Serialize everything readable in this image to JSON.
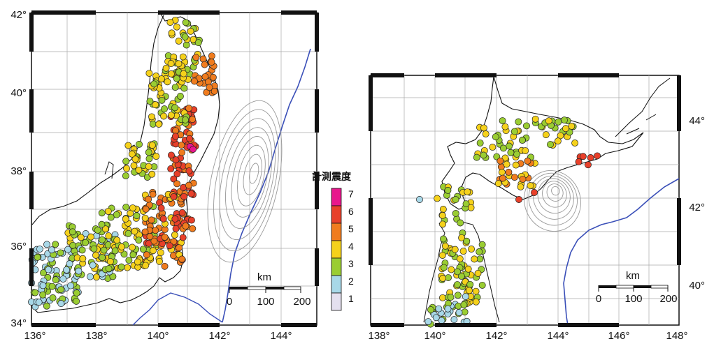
{
  "maps": [
    {
      "id": "honshu",
      "x_ticks": [
        "136°",
        "138°",
        "140°",
        "142°",
        "144°"
      ],
      "y_ticks": [
        "34°",
        "36°",
        "38°",
        "40°",
        "42°"
      ],
      "scale": {
        "unit": "km",
        "labels": [
          "0",
          "100",
          "200"
        ]
      }
    },
    {
      "id": "hokkaido",
      "x_ticks": [
        "138°",
        "140°",
        "142°",
        "144°",
        "146°",
        "148°"
      ],
      "y_ticks": [
        "40°",
        "42°",
        "44°"
      ],
      "scale": {
        "unit": "km",
        "labels": [
          "0",
          "100",
          "200"
        ]
      }
    }
  ],
  "legend": {
    "title": "計測震度",
    "levels": [
      {
        "label": "7",
        "color": "#e8168c"
      },
      {
        "label": "6",
        "color": "#e8402a"
      },
      {
        "label": "5",
        "color": "#f07c1e"
      },
      {
        "label": "4",
        "color": "#f5d11b"
      },
      {
        "label": "3",
        "color": "#9acd32"
      },
      {
        "label": "2",
        "color": "#a8d8e8"
      },
      {
        "label": "1",
        "color": "#e4e0ef"
      }
    ]
  },
  "colors": {
    "coastline": "#111111",
    "trench": "#3a4fb8",
    "grid": "#aaaaaa",
    "contour": "#999999"
  }
}
